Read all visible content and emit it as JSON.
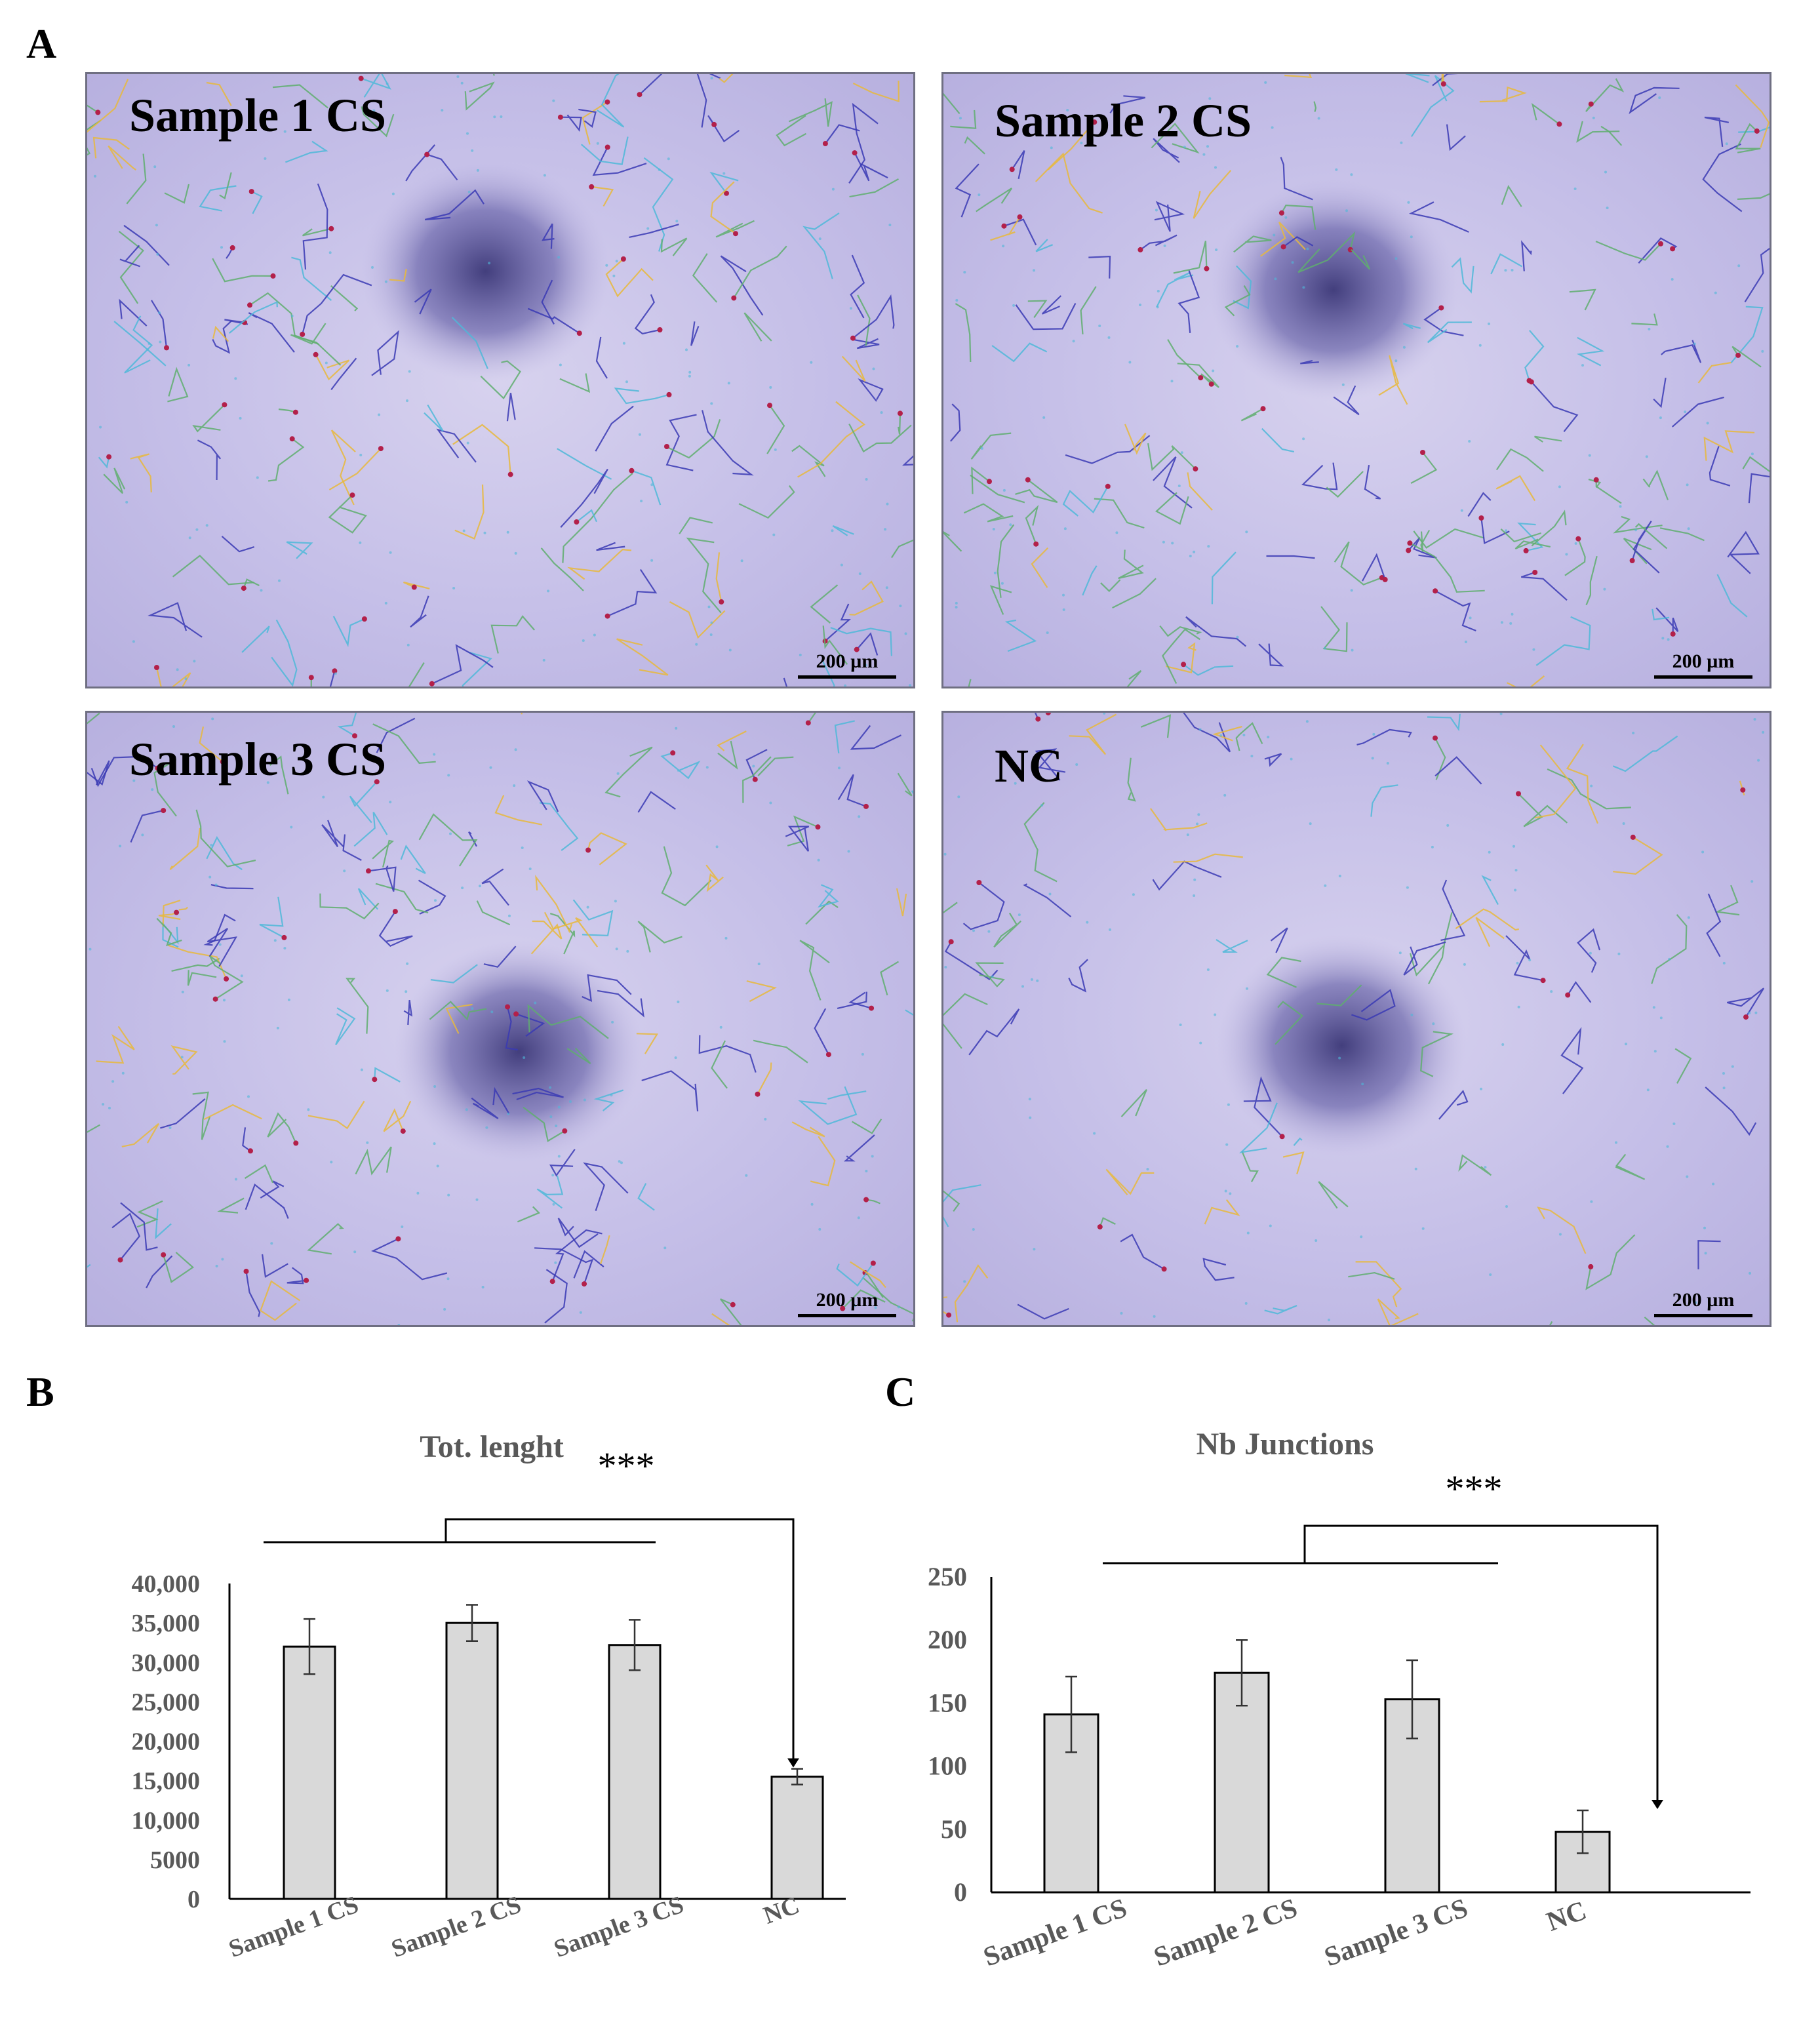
{
  "panel_labels": {
    "a": "A",
    "b": "B",
    "c": "C"
  },
  "micrographs": [
    {
      "title": "Sample 1 CS",
      "scale_bar": "200 µm",
      "density": 1.0
    },
    {
      "title": "Sample 2 CS",
      "scale_bar": "200 µm",
      "density": 1.0
    },
    {
      "title": "Sample 3 CS",
      "scale_bar": "200 µm",
      "density": 1.0
    },
    {
      "title": "NC",
      "scale_bar": "200 µm",
      "density": 0.55
    }
  ],
  "colors": {
    "bar_fill": "#d9d9d9",
    "bar_stroke": "#000000",
    "tick_label": "#595959",
    "title": "#595959",
    "net_blue": "#3a3ab4",
    "net_green": "#5fae6e",
    "net_yellow": "#e8b93c",
    "net_cyan": "#4fb8d8",
    "node_red": "#b3204a"
  },
  "chart_data": [
    {
      "type": "bar",
      "title": "Tot. lenght",
      "categories": [
        "Sample 1 CS",
        "Sample 2 CS",
        "Sample 3 CS",
        "NC"
      ],
      "values": [
        32000,
        35000,
        32200,
        15500
      ],
      "errors": [
        3500,
        2300,
        3200,
        1000
      ],
      "ylim": [
        0,
        40000
      ],
      "yticks": [
        "0",
        "5000",
        "10,000",
        "15,000",
        "20,000",
        "25,000",
        "30,000",
        "35,000",
        "40,000"
      ],
      "significance": "***",
      "grid": false,
      "xlabel": "",
      "ylabel": ""
    },
    {
      "type": "bar",
      "title": "Nb Junctions",
      "categories": [
        "Sample 1 CS",
        "Sample 2 CS",
        "Sample 3 CS",
        "NC"
      ],
      "values": [
        141,
        174,
        153,
        48
      ],
      "errors": [
        30,
        26,
        31,
        17
      ],
      "ylim": [
        0,
        250
      ],
      "yticks": [
        "0",
        "50",
        "100",
        "150",
        "200",
        "250"
      ],
      "significance": "***",
      "grid": false,
      "xlabel": "",
      "ylabel": ""
    }
  ]
}
